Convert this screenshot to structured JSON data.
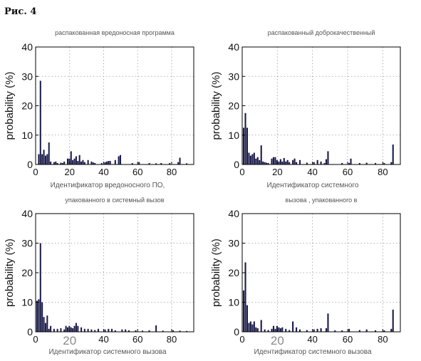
{
  "figure_label": "Рис. 4",
  "chart_data": [
    {
      "type": "bar",
      "title": "распакованная вредоносная программа",
      "xlabel": "Идентификатор вредоносного ПО,",
      "ylabel": "probability (%)",
      "xlim": [
        0,
        93
      ],
      "ylim": [
        0,
        40
      ],
      "xticks": [
        0,
        20,
        40,
        60,
        80
      ],
      "yticks": [
        0,
        10,
        20,
        30,
        40
      ],
      "grid": "dotted",
      "bar_color": "#1a1a4a",
      "x": [
        1,
        2,
        3,
        4,
        5,
        6,
        7,
        8,
        10,
        11,
        12,
        14,
        15,
        16,
        18,
        19,
        20,
        21,
        22,
        23,
        24,
        25,
        26,
        27,
        28,
        30,
        32,
        33,
        34,
        38,
        40,
        41,
        42,
        43,
        46,
        48,
        49,
        56,
        60,
        66,
        70,
        73,
        78,
        83,
        84,
        88
      ],
      "values": [
        3.5,
        28.5,
        3.5,
        5,
        3,
        3.5,
        7.5,
        1,
        0.8,
        1,
        0.5,
        0.6,
        0.5,
        1,
        2,
        2,
        4.5,
        1.5,
        2,
        2.8,
        1.2,
        3.2,
        1,
        1.5,
        0.8,
        1.5,
        1,
        0.7,
        0.5,
        0.5,
        0.8,
        1,
        1.2,
        1.2,
        1.5,
        2.8,
        3.2,
        0.5,
        0.8,
        0.5,
        0.4,
        0.5,
        0.5,
        0.8,
        2.3,
        0.4
      ]
    },
    {
      "type": "bar",
      "title": "распакованный доброкачественный",
      "xlabel": "Идентификатор системного",
      "ylabel": "probability (%)",
      "xlim": [
        0,
        90
      ],
      "ylim": [
        0,
        40
      ],
      "xticks": [
        0,
        20,
        40,
        60,
        80
      ],
      "yticks": [
        0,
        10,
        20,
        30,
        40
      ],
      "grid": "dotted",
      "bar_color": "#1a1a4a",
      "x": [
        0,
        1,
        2,
        3,
        4,
        5,
        6,
        7,
        8,
        9,
        10,
        11,
        12,
        13,
        14,
        16,
        17,
        18,
        19,
        20,
        21,
        22,
        23,
        24,
        25,
        26,
        28,
        29,
        30,
        32,
        36,
        40,
        42,
        44,
        46,
        47,
        48,
        56,
        60,
        61,
        66,
        70,
        75,
        80,
        84,
        85
      ],
      "values": [
        12.5,
        17.5,
        12.5,
        4,
        3,
        3.5,
        4,
        2,
        2.5,
        1.5,
        6.5,
        1,
        0.8,
        0.6,
        0.5,
        2,
        2.5,
        2.5,
        1.5,
        1,
        1.8,
        1,
        2.2,
        1,
        1.5,
        0.8,
        1.5,
        2,
        0.8,
        1.5,
        0.6,
        0.8,
        1.5,
        1,
        0.5,
        1.8,
        4.5,
        0.5,
        0.5,
        2,
        0.5,
        0.6,
        0.5,
        0.5,
        0.8,
        6.8
      ]
    },
    {
      "type": "bar",
      "title": "упакованного в системный вызов",
      "xlabel": "Идентификатор системного вызова",
      "ylabel": "probability (%)",
      "xlim": [
        0,
        93
      ],
      "ylim": [
        0,
        40
      ],
      "xticks": [
        0,
        20,
        40,
        60,
        80
      ],
      "xtick_highlight": 20,
      "yticks": [
        0,
        10,
        20,
        30,
        40
      ],
      "grid": "dotted",
      "bar_color": "#1a1a4a",
      "x": [
        0,
        1,
        2,
        3,
        4,
        5,
        6,
        7,
        8,
        10,
        12,
        14,
        16,
        17,
        18,
        19,
        20,
        21,
        22,
        23,
        24,
        26,
        28,
        30,
        32,
        34,
        36,
        40,
        42,
        44,
        46,
        50,
        52,
        54,
        58,
        62,
        66,
        70,
        74,
        80,
        84,
        88
      ],
      "values": [
        10.5,
        11,
        30,
        10,
        5,
        3,
        5.5,
        1,
        2,
        1,
        1,
        1.2,
        0.8,
        2,
        1.5,
        2,
        1.5,
        1.2,
        2,
        3,
        2,
        1.5,
        1,
        1,
        0.8,
        0.6,
        1,
        0.8,
        1,
        1,
        0.5,
        0.8,
        0.8,
        0.5,
        0.5,
        0.4,
        0.5,
        2.2,
        0.4,
        0.5,
        0.4,
        0.3
      ]
    },
    {
      "type": "bar",
      "title": "вызова , упакованного в",
      "xlabel": "Идентификатор системного вызова",
      "ylabel": "probability (%)",
      "xlim": [
        0,
        90
      ],
      "ylim": [
        0,
        40
      ],
      "xticks": [
        0,
        20,
        40,
        60,
        80
      ],
      "xtick_highlight": 20,
      "yticks": [
        0,
        10,
        20,
        30,
        40
      ],
      "grid": "dotted",
      "bar_color": "#1a1a4a",
      "x": [
        0,
        1,
        2,
        3,
        4,
        5,
        6,
        7,
        8,
        10,
        12,
        14,
        16,
        17,
        18,
        19,
        20,
        21,
        22,
        24,
        26,
        28,
        30,
        32,
        36,
        40,
        42,
        44,
        47,
        48,
        52,
        56,
        60,
        66,
        70,
        75,
        80,
        84,
        85
      ],
      "values": [
        14,
        23.5,
        9,
        3,
        3.5,
        2.5,
        3.5,
        1.5,
        1.2,
        4,
        0.8,
        0.6,
        1,
        2,
        1,
        2,
        1.5,
        1.2,
        1.5,
        1,
        0.6,
        3.5,
        1.5,
        0.8,
        0.6,
        0.8,
        1,
        1.2,
        1.2,
        6.2,
        0.5,
        0.5,
        1,
        0.6,
        0.8,
        0.5,
        0.5,
        1,
        7.5
      ]
    }
  ]
}
